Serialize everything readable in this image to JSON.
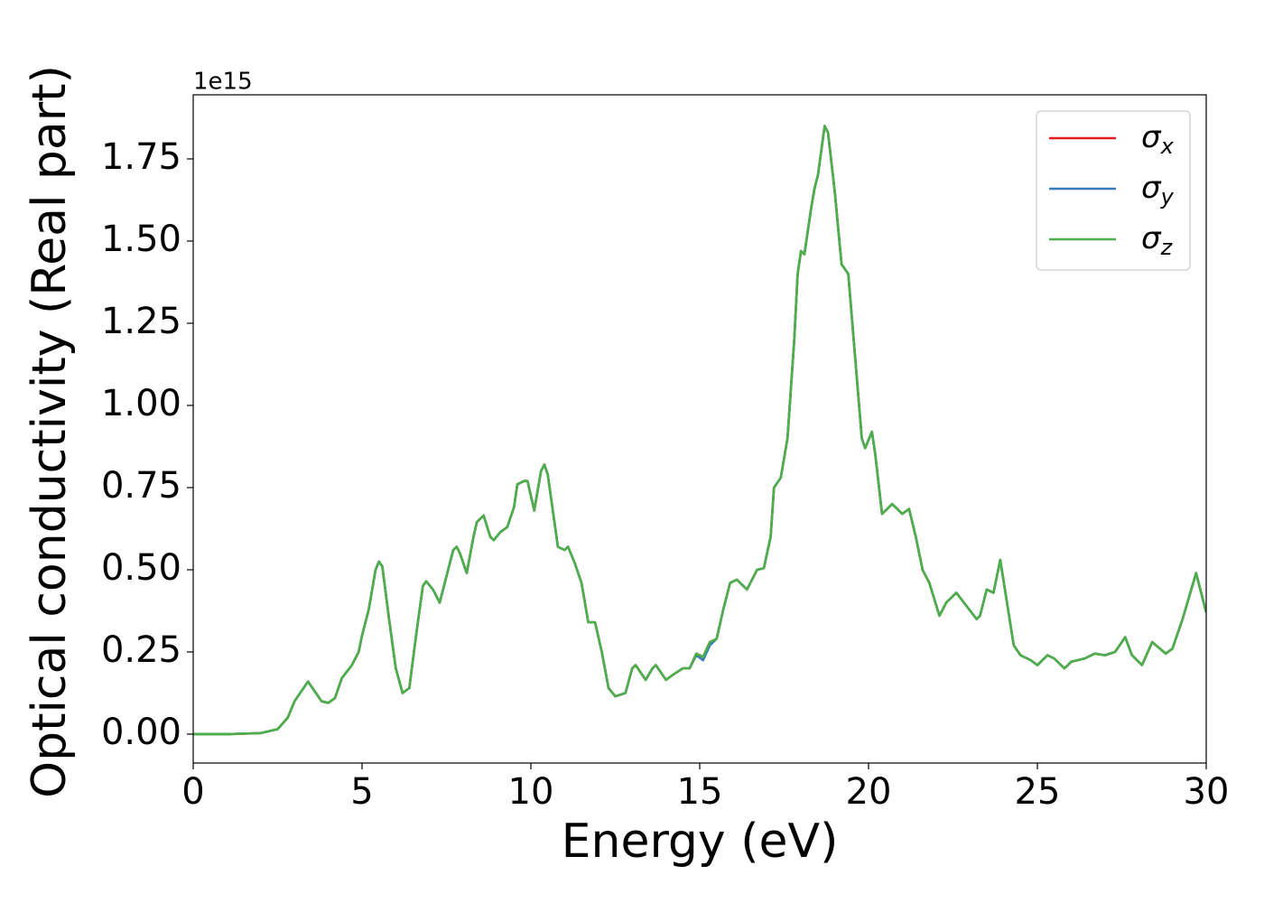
{
  "chart_data": {
    "type": "line",
    "xlabel": "Energy (eV)",
    "ylabel": "Optical conductivity (Real part)",
    "y_offset_label": "1e15",
    "xlim": [
      0,
      30
    ],
    "xticks": [
      0,
      5,
      10,
      15,
      20,
      25,
      30
    ],
    "ylim": [
      -0.088,
      1.945
    ],
    "yticks": [
      {
        "value": 0,
        "label": "0.00"
      },
      {
        "value": 0.25,
        "label": "0.25"
      },
      {
        "value": 0.5,
        "label": "0.50"
      },
      {
        "value": 0.75,
        "label": "0.75"
      },
      {
        "value": 1,
        "label": "1.00"
      },
      {
        "value": 1.25,
        "label": "1.25"
      },
      {
        "value": 1.5,
        "label": "1.50"
      },
      {
        "value": 1.75,
        "label": "1.75"
      }
    ],
    "legend": "upper right",
    "x": [
      0,
      1,
      2,
      2.5,
      2.8,
      3.0,
      3.2,
      3.4,
      3.6,
      3.8,
      4.0,
      4.2,
      4.4,
      4.7,
      4.9,
      5.0,
      5.2,
      5.4,
      5.5,
      5.6,
      5.8,
      6.0,
      6.2,
      6.4,
      6.6,
      6.8,
      6.9,
      7.1,
      7.3,
      7.5,
      7.7,
      7.8,
      7.9,
      8.1,
      8.3,
      8.4,
      8.6,
      8.8,
      8.9,
      9.1,
      9.3,
      9.5,
      9.6,
      9.8,
      9.9,
      10.1,
      10.3,
      10.4,
      10.5,
      10.8,
      11.0,
      11.1,
      11.3,
      11.5,
      11.7,
      11.9,
      12.1,
      12.3,
      12.5,
      12.8,
      13.0,
      13.1,
      13.4,
      13.6,
      13.7,
      14.0,
      14.2,
      14.5,
      14.7,
      14.9,
      15.1,
      15.3,
      15.5,
      15.7,
      15.9,
      16.1,
      16.4,
      16.7,
      16.9,
      17.1,
      17.2,
      17.4,
      17.6,
      17.8,
      17.9,
      18.0,
      18.1,
      18.3,
      18.4,
      18.5,
      18.7,
      18.8,
      19.0,
      19.2,
      19.4,
      19.6,
      19.8,
      19.9,
      20.1,
      20.2,
      20.4,
      20.7,
      21.0,
      21.2,
      21.4,
      21.6,
      21.8,
      22.1,
      22.3,
      22.5,
      22.6,
      22.9,
      23.2,
      23.3,
      23.5,
      23.7,
      23.9,
      24.1,
      24.3,
      24.5,
      24.8,
      25.0,
      25.3,
      25.5,
      25.8,
      26.0,
      26.4,
      26.7,
      27.0,
      27.3,
      27.6,
      27.8,
      28.1,
      28.4,
      28.8,
      29.0,
      29.3,
      29.5,
      29.7,
      30.0
    ],
    "series": [
      {
        "name": "σx",
        "color": "#e41a1c",
        "values": [
          0,
          0,
          0.003,
          0.015,
          0.05,
          0.1,
          0.13,
          0.16,
          0.13,
          0.1,
          0.095,
          0.11,
          0.17,
          0.21,
          0.25,
          0.3,
          0.38,
          0.5,
          0.525,
          0.51,
          0.35,
          0.2,
          0.125,
          0.14,
          0.3,
          0.45,
          0.465,
          0.44,
          0.4,
          0.48,
          0.56,
          0.57,
          0.55,
          0.49,
          0.6,
          0.645,
          0.665,
          0.6,
          0.59,
          0.615,
          0.63,
          0.69,
          0.76,
          0.77,
          0.77,
          0.68,
          0.8,
          0.82,
          0.79,
          0.57,
          0.56,
          0.57,
          0.52,
          0.46,
          0.34,
          0.34,
          0.25,
          0.14,
          0.115,
          0.125,
          0.2,
          0.21,
          0.165,
          0.2,
          0.21,
          0.165,
          0.18,
          0.2,
          0.2,
          0.245,
          0.235,
          0.28,
          0.29,
          0.38,
          0.46,
          0.47,
          0.44,
          0.5,
          0.505,
          0.6,
          0.75,
          0.78,
          0.9,
          1.2,
          1.4,
          1.47,
          1.46,
          1.6,
          1.66,
          1.7,
          1.85,
          1.83,
          1.65,
          1.43,
          1.4,
          1.15,
          0.9,
          0.87,
          0.92,
          0.85,
          0.67,
          0.7,
          0.67,
          0.685,
          0.6,
          0.5,
          0.46,
          0.36,
          0.4,
          0.42,
          0.43,
          0.39,
          0.35,
          0.36,
          0.44,
          0.43,
          0.53,
          0.4,
          0.27,
          0.24,
          0.225,
          0.21,
          0.24,
          0.23,
          0.2,
          0.22,
          0.23,
          0.245,
          0.24,
          0.25,
          0.295,
          0.24,
          0.21,
          0.28,
          0.245,
          0.26,
          0.35,
          0.42,
          0.49,
          0.37
        ]
      },
      {
        "name": "σy",
        "color": "#377eb8",
        "values": [
          0,
          0,
          0.003,
          0.015,
          0.05,
          0.1,
          0.13,
          0.16,
          0.13,
          0.1,
          0.095,
          0.11,
          0.17,
          0.21,
          0.25,
          0.3,
          0.38,
          0.5,
          0.525,
          0.51,
          0.35,
          0.2,
          0.125,
          0.14,
          0.3,
          0.45,
          0.465,
          0.44,
          0.4,
          0.48,
          0.56,
          0.57,
          0.55,
          0.49,
          0.6,
          0.645,
          0.665,
          0.6,
          0.59,
          0.615,
          0.63,
          0.69,
          0.76,
          0.77,
          0.77,
          0.68,
          0.8,
          0.82,
          0.79,
          0.57,
          0.56,
          0.57,
          0.52,
          0.46,
          0.34,
          0.34,
          0.25,
          0.14,
          0.115,
          0.125,
          0.2,
          0.21,
          0.165,
          0.2,
          0.21,
          0.165,
          0.18,
          0.2,
          0.2,
          0.24,
          0.225,
          0.27,
          0.29,
          0.38,
          0.46,
          0.47,
          0.44,
          0.5,
          0.505,
          0.6,
          0.75,
          0.78,
          0.9,
          1.2,
          1.4,
          1.47,
          1.46,
          1.6,
          1.66,
          1.7,
          1.85,
          1.83,
          1.65,
          1.43,
          1.4,
          1.15,
          0.9,
          0.87,
          0.92,
          0.85,
          0.67,
          0.7,
          0.67,
          0.685,
          0.6,
          0.5,
          0.46,
          0.36,
          0.4,
          0.42,
          0.43,
          0.39,
          0.35,
          0.36,
          0.44,
          0.43,
          0.53,
          0.4,
          0.27,
          0.24,
          0.225,
          0.21,
          0.24,
          0.23,
          0.2,
          0.22,
          0.23,
          0.245,
          0.24,
          0.25,
          0.295,
          0.24,
          0.21,
          0.28,
          0.245,
          0.26,
          0.35,
          0.42,
          0.49,
          0.37
        ]
      },
      {
        "name": "σz",
        "color": "#4daf4a",
        "values": [
          0,
          0,
          0.003,
          0.015,
          0.05,
          0.1,
          0.13,
          0.16,
          0.13,
          0.1,
          0.095,
          0.11,
          0.17,
          0.21,
          0.25,
          0.3,
          0.38,
          0.5,
          0.525,
          0.51,
          0.35,
          0.2,
          0.125,
          0.14,
          0.3,
          0.45,
          0.465,
          0.44,
          0.4,
          0.48,
          0.56,
          0.57,
          0.55,
          0.49,
          0.6,
          0.645,
          0.665,
          0.6,
          0.59,
          0.615,
          0.63,
          0.69,
          0.76,
          0.77,
          0.77,
          0.68,
          0.8,
          0.82,
          0.79,
          0.57,
          0.56,
          0.57,
          0.52,
          0.46,
          0.34,
          0.34,
          0.25,
          0.14,
          0.115,
          0.125,
          0.2,
          0.21,
          0.165,
          0.2,
          0.21,
          0.165,
          0.18,
          0.2,
          0.2,
          0.245,
          0.235,
          0.28,
          0.29,
          0.38,
          0.46,
          0.47,
          0.44,
          0.5,
          0.505,
          0.6,
          0.75,
          0.78,
          0.9,
          1.2,
          1.4,
          1.47,
          1.46,
          1.6,
          1.66,
          1.7,
          1.85,
          1.83,
          1.65,
          1.43,
          1.4,
          1.15,
          0.9,
          0.87,
          0.92,
          0.85,
          0.67,
          0.7,
          0.67,
          0.685,
          0.6,
          0.5,
          0.46,
          0.36,
          0.4,
          0.42,
          0.43,
          0.39,
          0.35,
          0.36,
          0.44,
          0.43,
          0.53,
          0.4,
          0.27,
          0.24,
          0.225,
          0.21,
          0.24,
          0.23,
          0.2,
          0.22,
          0.23,
          0.245,
          0.24,
          0.25,
          0.295,
          0.24,
          0.21,
          0.28,
          0.245,
          0.26,
          0.35,
          0.42,
          0.49,
          0.37
        ]
      }
    ]
  }
}
